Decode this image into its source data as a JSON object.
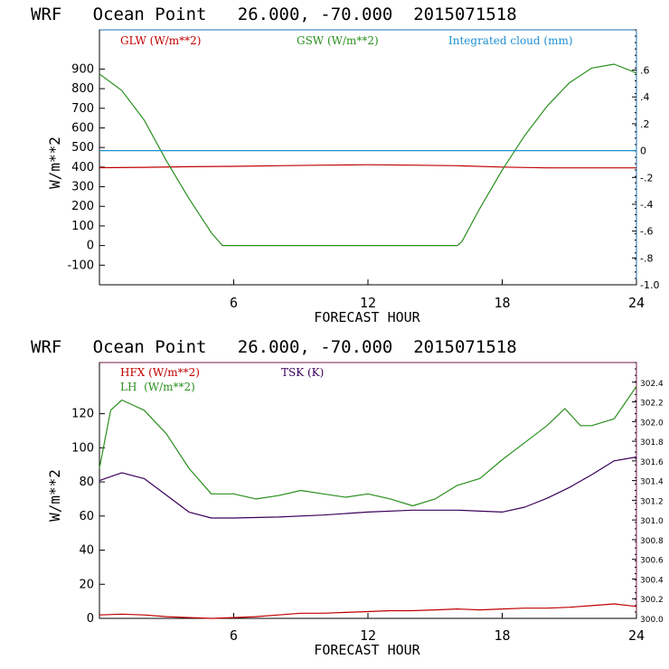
{
  "colors": {
    "glw": "#c00000",
    "gsw": "#2a8f1e",
    "cloud": "#1f8fd0",
    "hfx": "#c00000",
    "lh": "#2a8f1e",
    "tsk": "#3b005b",
    "axis_top": "#1f6fb0",
    "axis_bottom": "#7a1a4a"
  },
  "chart_data": [
    {
      "type": "line",
      "title": "WRF   Ocean Point   26.000, -70.000  2015071518",
      "xlabel": "FORECAST HOUR",
      "ylabel": "W/m**2",
      "xlim": [
        0,
        24
      ],
      "ylim": [
        -200,
        1100
      ],
      "x_ticks": [
        "6",
        "12",
        "18",
        "24"
      ],
      "y_ticks": [
        "-100",
        "0",
        "100",
        "200",
        "300",
        "400",
        "500",
        "600",
        "700",
        "800",
        "900"
      ],
      "y2lim": [
        -1.0,
        0.9
      ],
      "y2_ticks": [
        ".6",
        ".4",
        ".2",
        "0",
        "-.2",
        "-.4",
        "-.6",
        "-.8",
        "-1.0"
      ],
      "legend": [
        "GLW (W/m**2)",
        "GSW (W/m**2)",
        "Integrated cloud (mm)"
      ],
      "series": [
        {
          "name": "GLW",
          "x": [
            0,
            2,
            4,
            6,
            8,
            10,
            12,
            14,
            16,
            18,
            20,
            22,
            24
          ],
          "values": [
            397,
            399,
            402,
            404,
            407,
            410,
            412,
            410,
            407,
            400,
            396,
            396,
            396
          ]
        },
        {
          "name": "GSW",
          "x": [
            0,
            1,
            2,
            3,
            4,
            5,
            5.5,
            6,
            8,
            10,
            12,
            14,
            16,
            16.2,
            17,
            18,
            19,
            20,
            21,
            22,
            23,
            24
          ],
          "values": [
            875,
            790,
            640,
            430,
            240,
            65,
            0,
            0,
            0,
            0,
            0,
            0,
            0,
            20,
            190,
            385,
            560,
            710,
            830,
            905,
            925,
            880
          ]
        },
        {
          "name": "Integrated cloud",
          "axis": "right",
          "x": [
            0,
            24
          ],
          "values": [
            0,
            0
          ]
        }
      ]
    },
    {
      "type": "line",
      "title": "WRF   Ocean Point   26.000, -70.000  2015071518",
      "xlabel": "FORECAST HOUR",
      "ylabel": "W/m**2",
      "xlim": [
        0,
        24
      ],
      "ylim": [
        0,
        150
      ],
      "x_ticks": [
        "6",
        "12",
        "18",
        "24"
      ],
      "y_ticks": [
        "0",
        "20",
        "40",
        "60",
        "80",
        "100",
        "120"
      ],
      "y2lim": [
        300.0,
        302.6
      ],
      "y2_ticks": [
        "300.0",
        "300.2",
        "300.4",
        "300.6",
        "300.8",
        "301.0",
        "301.2",
        "301.4",
        "301.6",
        "301.8",
        "302.0",
        "302.2",
        "302.4"
      ],
      "legend": [
        "HFX (W/m**2)",
        "LH  (W/m**2)",
        "TSK (K)"
      ],
      "series": [
        {
          "name": "HFX",
          "x": [
            0,
            1,
            2,
            3,
            4,
            5,
            6,
            7,
            8,
            9,
            10,
            11,
            12,
            13,
            14,
            15,
            16,
            17,
            18,
            19,
            20,
            21,
            22,
            23,
            24
          ],
          "values": [
            2,
            2.5,
            2,
            1,
            0.5,
            0,
            0.5,
            1,
            2,
            3,
            3,
            3.5,
            4,
            4.5,
            4.5,
            5,
            5.5,
            5,
            5.5,
            6,
            6,
            6.5,
            7.5,
            8.5,
            7
          ]
        },
        {
          "name": "LH",
          "x": [
            0,
            0.5,
            1,
            2,
            3,
            4,
            5,
            6,
            7,
            8,
            9,
            10,
            11,
            12,
            13,
            14,
            15,
            16,
            17,
            18,
            19,
            20,
            20.8,
            21.5,
            22,
            23,
            24
          ],
          "values": [
            88,
            122,
            128,
            122,
            108,
            88,
            73,
            73,
            70,
            72,
            75,
            73,
            71,
            73,
            70,
            66,
            70,
            78,
            82,
            93,
            103,
            113,
            123,
            113,
            113,
            117,
            136
          ]
        },
        {
          "name": "TSK",
          "axis": "right",
          "x": [
            0,
            1,
            2,
            3,
            4,
            5,
            6,
            8,
            10,
            12,
            14,
            16,
            18,
            19,
            20,
            21,
            22,
            23,
            24
          ],
          "values": [
            301.4,
            301.48,
            301.42,
            301.25,
            301.08,
            301.02,
            301.02,
            301.03,
            301.05,
            301.08,
            301.1,
            301.1,
            301.08,
            301.13,
            301.22,
            301.33,
            301.46,
            301.6,
            301.64
          ]
        }
      ]
    }
  ]
}
